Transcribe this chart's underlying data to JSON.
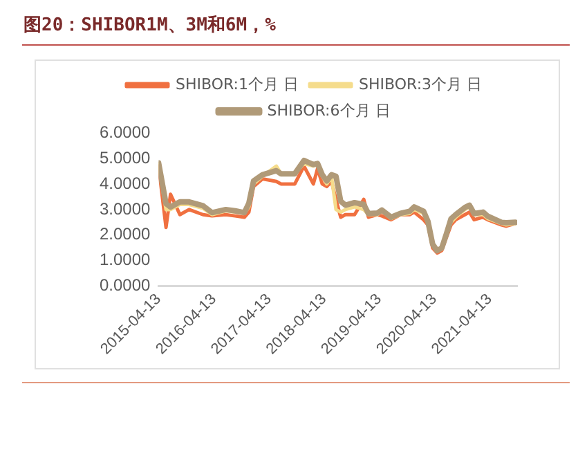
{
  "chart_data": {
    "type": "line",
    "title": "图20：SHIBOR1M、3M和6M，%",
    "x": [
      "2015-04-13",
      "2015-06",
      "2015-07",
      "2015-09",
      "2015-11",
      "2016-02",
      "2016-04",
      "2016-07",
      "2016-09",
      "2016-11",
      "2016-12",
      "2017-01",
      "2017-03",
      "2017-06",
      "2017-07",
      "2017-10",
      "2017-12",
      "2018-02",
      "2018-03",
      "2018-04",
      "2018-05",
      "2018-06",
      "2018-07",
      "2018-08",
      "2018-09",
      "2018-11",
      "2019-01",
      "2019-02",
      "2019-04",
      "2019-05",
      "2019-07",
      "2019-09",
      "2019-11",
      "2019-12",
      "2020-02",
      "2020-03",
      "2020-04",
      "2020-05",
      "2020-06",
      "2020-07",
      "2020-08",
      "2020-09",
      "2020-11",
      "2020-12",
      "2021-01",
      "2021-03",
      "2021-04",
      "2021-07",
      "2021-08",
      "2021-10"
    ],
    "series": [
      {
        "name": "SHIBOR:1个月 日",
        "color": "#f07040",
        "values": [
          4.7,
          2.3,
          3.6,
          2.8,
          3.0,
          2.8,
          2.75,
          2.8,
          2.75,
          2.7,
          2.9,
          3.9,
          4.2,
          4.1,
          4.0,
          4.0,
          4.7,
          4.0,
          4.6,
          4.0,
          3.9,
          4.1,
          3.4,
          2.7,
          2.8,
          2.8,
          3.4,
          2.7,
          2.8,
          2.75,
          2.6,
          2.8,
          2.8,
          2.9,
          2.6,
          2.4,
          1.5,
          1.3,
          1.4,
          1.9,
          2.4,
          2.6,
          2.8,
          2.9,
          2.6,
          2.7,
          2.6,
          2.4,
          2.35,
          2.45
        ]
      },
      {
        "name": "SHIBOR:3个月 日",
        "color": "#f5dc8c",
        "values": [
          4.8,
          3.0,
          3.0,
          3.2,
          3.2,
          3.05,
          2.8,
          2.95,
          2.9,
          2.85,
          3.1,
          4.0,
          4.3,
          4.7,
          4.4,
          4.4,
          4.8,
          4.7,
          4.8,
          4.3,
          4.0,
          4.3,
          3.0,
          2.9,
          3.0,
          3.1,
          3.0,
          2.8,
          2.8,
          2.95,
          2.65,
          2.8,
          2.85,
          3.0,
          2.85,
          2.5,
          1.6,
          1.4,
          1.45,
          2.0,
          2.5,
          2.7,
          3.0,
          3.1,
          2.8,
          2.8,
          2.65,
          2.45,
          2.4,
          2.45
        ]
      },
      {
        "name": "SHIBOR:6个月 日",
        "color": "#b09a78",
        "values": [
          4.82,
          3.23,
          3.1,
          3.3,
          3.3,
          3.15,
          2.88,
          3.0,
          2.95,
          2.88,
          3.25,
          4.12,
          4.36,
          4.52,
          4.4,
          4.4,
          4.92,
          4.76,
          4.8,
          4.36,
          4.12,
          4.36,
          4.3,
          3.33,
          3.17,
          3.27,
          3.2,
          2.84,
          2.86,
          2.98,
          2.7,
          2.85,
          2.93,
          3.1,
          2.93,
          2.54,
          1.65,
          1.39,
          1.5,
          2.04,
          2.64,
          2.8,
          3.08,
          3.17,
          2.84,
          2.9,
          2.74,
          2.5,
          2.48,
          2.5
        ]
      }
    ],
    "xlim": [
      "2015-04-13",
      "2021-10-13"
    ],
    "xticks": [
      "2015-04-13",
      "2016-04-13",
      "2017-04-13",
      "2018-04-13",
      "2019-04-13",
      "2020-04-13",
      "2021-04-13"
    ],
    "ylim": [
      0,
      6
    ],
    "yticks": [
      {
        "value": 0,
        "label": "0.0000"
      },
      {
        "value": 1,
        "label": "1.0000"
      },
      {
        "value": 2,
        "label": "2.0000"
      },
      {
        "value": 3,
        "label": "3.0000"
      },
      {
        "value": 4,
        "label": "4.0000"
      },
      {
        "value": 5,
        "label": "5.0000"
      },
      {
        "value": 6,
        "label": "6.0000"
      }
    ],
    "grid": false,
    "legend": "top",
    "marker": "none",
    "line_style": "solid"
  }
}
